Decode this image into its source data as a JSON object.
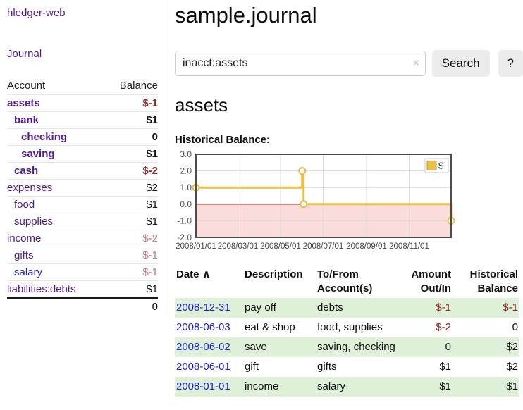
{
  "app": {
    "brand": "hledger-web",
    "nav_journal": "Journal"
  },
  "sidebar": {
    "accounts_header": {
      "account": "Account",
      "balance": "Balance"
    },
    "accounts": [
      {
        "name": "assets",
        "balance": "$-1",
        "indent": 0,
        "bold": true,
        "blue": false
      },
      {
        "name": "bank",
        "balance": "$1",
        "indent": 1,
        "bold": true,
        "blue": false
      },
      {
        "name": "checking",
        "balance": "0",
        "indent": 2,
        "bold": true,
        "blue": false
      },
      {
        "name": "saving",
        "balance": "$1",
        "indent": 2,
        "bold": true,
        "blue": false
      },
      {
        "name": "cash",
        "balance": "$-2",
        "indent": 1,
        "bold": true,
        "blue": false
      },
      {
        "name": "expenses",
        "balance": "$2",
        "indent": 0,
        "bold": false,
        "blue": false
      },
      {
        "name": "food",
        "balance": "$1",
        "indent": 1,
        "bold": false,
        "blue": false
      },
      {
        "name": "supplies",
        "balance": "$1",
        "indent": 1,
        "bold": false,
        "blue": false
      },
      {
        "name": "income",
        "balance": "$-2",
        "indent": 0,
        "bold": false,
        "blue": false
      },
      {
        "name": "gifts",
        "balance": "$-1",
        "indent": 1,
        "bold": false,
        "blue": false
      },
      {
        "name": "salary",
        "balance": "$-1",
        "indent": 1,
        "bold": false,
        "blue": true
      },
      {
        "name": "liabilities:debts",
        "balance": "$1",
        "indent": 0,
        "bold": false,
        "blue": false
      }
    ],
    "total": "0"
  },
  "main": {
    "title": "sample.journal",
    "search": {
      "query": "inacct:assets",
      "clear_icon": "×",
      "button": "Search",
      "help": "?"
    },
    "account_heading": "assets",
    "chart_label": "Historical Balance:"
  },
  "chart_data": {
    "type": "line",
    "step": true,
    "title": "Historical Balance",
    "xlim": [
      "2008-01-01",
      "2008-12-31"
    ],
    "ylim": [
      -2,
      3
    ],
    "y_ticks": [
      {
        "value": 3,
        "label": "3.0"
      },
      {
        "value": 2,
        "label": "2.0"
      },
      {
        "value": 1,
        "label": "1.0"
      },
      {
        "value": 0,
        "label": "0.0"
      },
      {
        "value": -1,
        "label": "-1.0"
      },
      {
        "value": -2,
        "label": "-2.0"
      }
    ],
    "x_ticks": [
      {
        "date": "2008-01-01",
        "label": "2008/01/01"
      },
      {
        "date": "2008-03-01",
        "label": "2008/03/01"
      },
      {
        "date": "2008-05-01",
        "label": "2008/05/01"
      },
      {
        "date": "2008-07-01",
        "label": "2008/07/01"
      },
      {
        "date": "2008-09-01",
        "label": "2008/09/01"
      },
      {
        "date": "2008-11-01",
        "label": "2008/11/01"
      }
    ],
    "series": [
      {
        "name": "$",
        "color": "#e9bf4a",
        "points": [
          {
            "date": "2008-01-01",
            "value": 1
          },
          {
            "date": "2008-06-01",
            "value": 2
          },
          {
            "date": "2008-06-03",
            "value": 0
          },
          {
            "date": "2008-12-31",
            "value": -1
          }
        ]
      }
    ],
    "legend": {
      "label": "$",
      "swatch_color": "#e9bf4a",
      "position": "top-right"
    },
    "grid": true,
    "grid_color": "#dadada",
    "zero_line_color": "#8e3231",
    "negative_fill": "#fadcdb",
    "border_color": "#4d4d4d"
  },
  "register_table": {
    "columns": [
      "Date",
      "Description",
      "To/From Account(s)",
      "Amount Out/In",
      "Historical Balance"
    ],
    "sort_icon": "∧",
    "rows": [
      {
        "date": "2008-12-31",
        "description": "pay off",
        "accounts": "debts",
        "amount": "$-1",
        "balance": "$-1"
      },
      {
        "date": "2008-06-03",
        "description": "eat & shop",
        "accounts": "food, supplies",
        "amount": "$-2",
        "balance": "0"
      },
      {
        "date": "2008-06-02",
        "description": "save",
        "accounts": "saving, checking",
        "amount": "0",
        "balance": "$2"
      },
      {
        "date": "2008-06-01",
        "description": "gift",
        "accounts": "gifts",
        "amount": "$1",
        "balance": "$2"
      },
      {
        "date": "2008-01-01",
        "description": "income",
        "accounts": "salary",
        "amount": "$1",
        "balance": "$1"
      }
    ]
  }
}
